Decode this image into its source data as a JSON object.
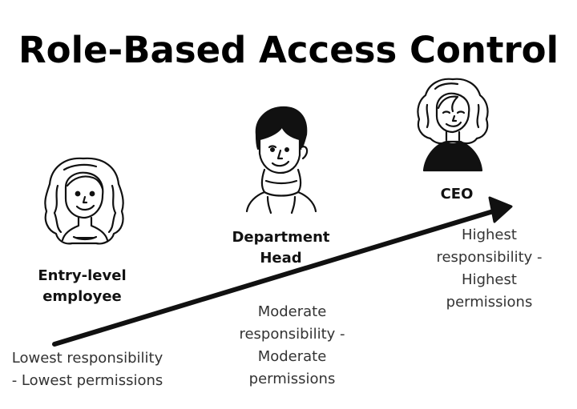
{
  "title": "Role-Based Access Control",
  "roles": [
    {
      "label_lines": [
        "Entry-level",
        "employee"
      ],
      "description_lines": [
        "Lowest responsibility",
        "- Lowest permissions"
      ],
      "icon": "woman-wavy-hair-icon"
    },
    {
      "label_lines": [
        "Department",
        "Head"
      ],
      "description_lines": [
        "Moderate",
        "responsibility -",
        "Moderate",
        "permissions"
      ],
      "icon": "man-turtleneck-icon"
    },
    {
      "label_lines": [
        "CEO"
      ],
      "description_lines": [
        "Highest",
        "responsibility -",
        "Highest",
        "permissions"
      ],
      "icon": "person-curly-hair-icon"
    }
  ],
  "colors": {
    "ink": "#111111",
    "skin_fill": "#ffffff",
    "background": "#ffffff"
  }
}
